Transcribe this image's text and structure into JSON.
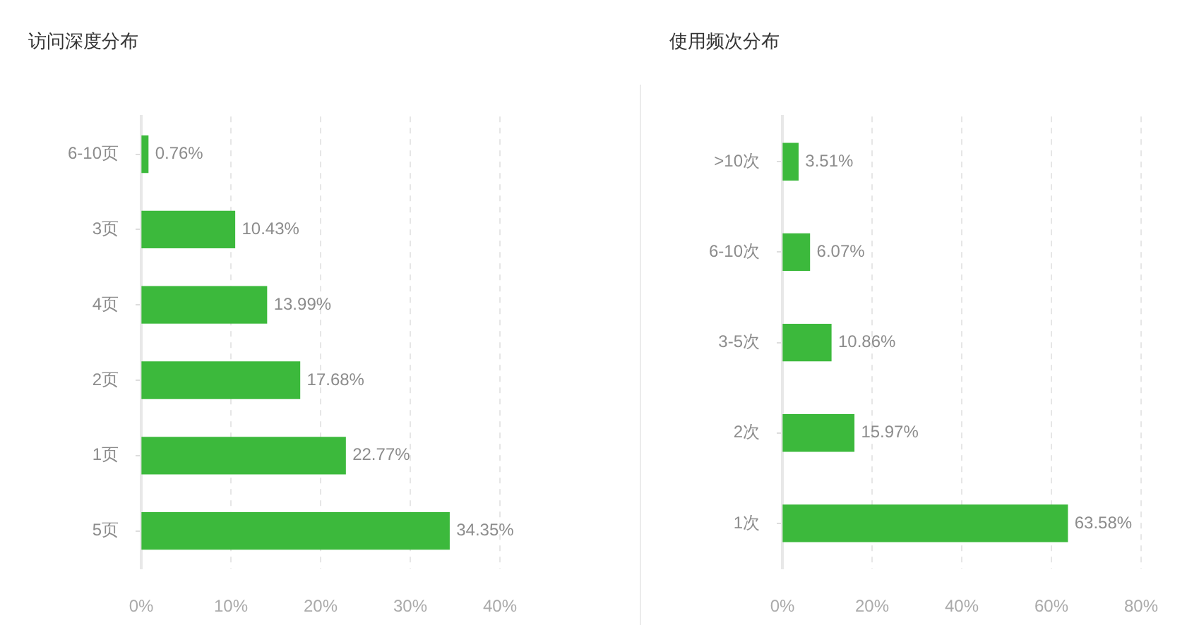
{
  "chart_data": [
    {
      "type": "bar",
      "title": "访问深度分布",
      "orientation": "horizontal",
      "categories": [
        "6-10页",
        "3页",
        "4页",
        "2页",
        "1页",
        "5页"
      ],
      "values": [
        0.76,
        10.43,
        13.99,
        17.68,
        22.77,
        34.35
      ],
      "value_labels": [
        "0.76%",
        "10.43%",
        "13.99%",
        "17.68%",
        "22.77%",
        "34.35%"
      ],
      "color": "#3cb93c",
      "xlim": [
        0,
        40
      ],
      "xticks": [
        {
          "value": 0,
          "label": "0%"
        },
        {
          "value": 10,
          "label": "10%"
        },
        {
          "value": 20,
          "label": "20%"
        },
        {
          "value": 30,
          "label": "30%"
        },
        {
          "value": 40,
          "label": "40%"
        }
      ],
      "grid": "x"
    },
    {
      "type": "bar",
      "title": "使用频次分布",
      "orientation": "horizontal",
      "categories": [
        ">10次",
        "6-10次",
        "3-5次",
        "2次",
        "1次"
      ],
      "values": [
        3.51,
        6.07,
        10.86,
        15.97,
        63.58
      ],
      "value_labels": [
        "3.51%",
        "6.07%",
        "10.86%",
        "15.97%",
        "63.58%"
      ],
      "color": "#3cb93c",
      "xlim": [
        0,
        80
      ],
      "xticks": [
        {
          "value": 0,
          "label": "0%"
        },
        {
          "value": 20,
          "label": "20%"
        },
        {
          "value": 40,
          "label": "40%"
        },
        {
          "value": 60,
          "label": "60%"
        },
        {
          "value": 80,
          "label": "80%"
        }
      ],
      "grid": "x"
    }
  ]
}
